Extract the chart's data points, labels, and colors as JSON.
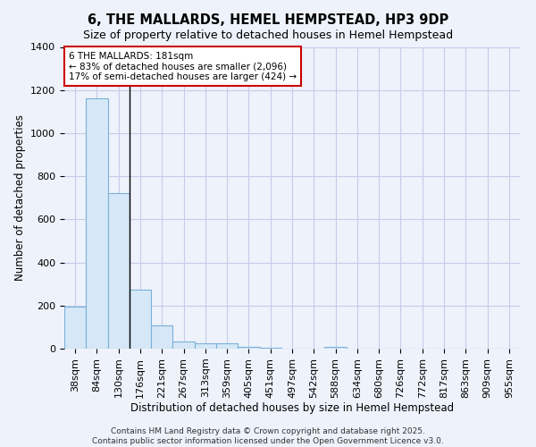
{
  "title": "6, THE MALLARDS, HEMEL HEMPSTEAD, HP3 9DP",
  "subtitle": "Size of property relative to detached houses in Hemel Hempstead",
  "xlabel": "Distribution of detached houses by size in Hemel Hempstead",
  "ylabel": "Number of detached properties",
  "bins": [
    "38sqm",
    "84sqm",
    "130sqm",
    "176sqm",
    "221sqm",
    "267sqm",
    "313sqm",
    "359sqm",
    "405sqm",
    "451sqm",
    "497sqm",
    "542sqm",
    "588sqm",
    "634sqm",
    "680sqm",
    "726sqm",
    "772sqm",
    "817sqm",
    "863sqm",
    "909sqm",
    "955sqm"
  ],
  "values": [
    197,
    1160,
    720,
    275,
    107,
    32,
    25,
    25,
    7,
    3,
    2,
    0,
    10,
    0,
    0,
    0,
    0,
    0,
    0,
    0,
    0
  ],
  "bar_color": "#d6e8f7",
  "bar_edge_color": "#7ab0d8",
  "background_color": "#eef2fb",
  "grid_color": "#c5cde8",
  "annotation_line1": "6 THE MALLARDS: 181sqm",
  "annotation_line2": "← 83% of detached houses are smaller (2,096)",
  "annotation_line3": "17% of semi-detached houses are larger (424) →",
  "annotation_box_color": "#ffffff",
  "annotation_box_edge": "#cc0000",
  "property_line_bin_index": 2,
  "ylim": [
    0,
    1400
  ],
  "yticks": [
    0,
    200,
    400,
    600,
    800,
    1000,
    1200,
    1400
  ],
  "footer_line1": "Contains HM Land Registry data © Crown copyright and database right 2025.",
  "footer_line2": "Contains public sector information licensed under the Open Government Licence v3.0.",
  "title_fontsize": 10.5,
  "subtitle_fontsize": 9,
  "axis_label_fontsize": 8.5,
  "tick_fontsize": 8,
  "footer_fontsize": 6.5
}
